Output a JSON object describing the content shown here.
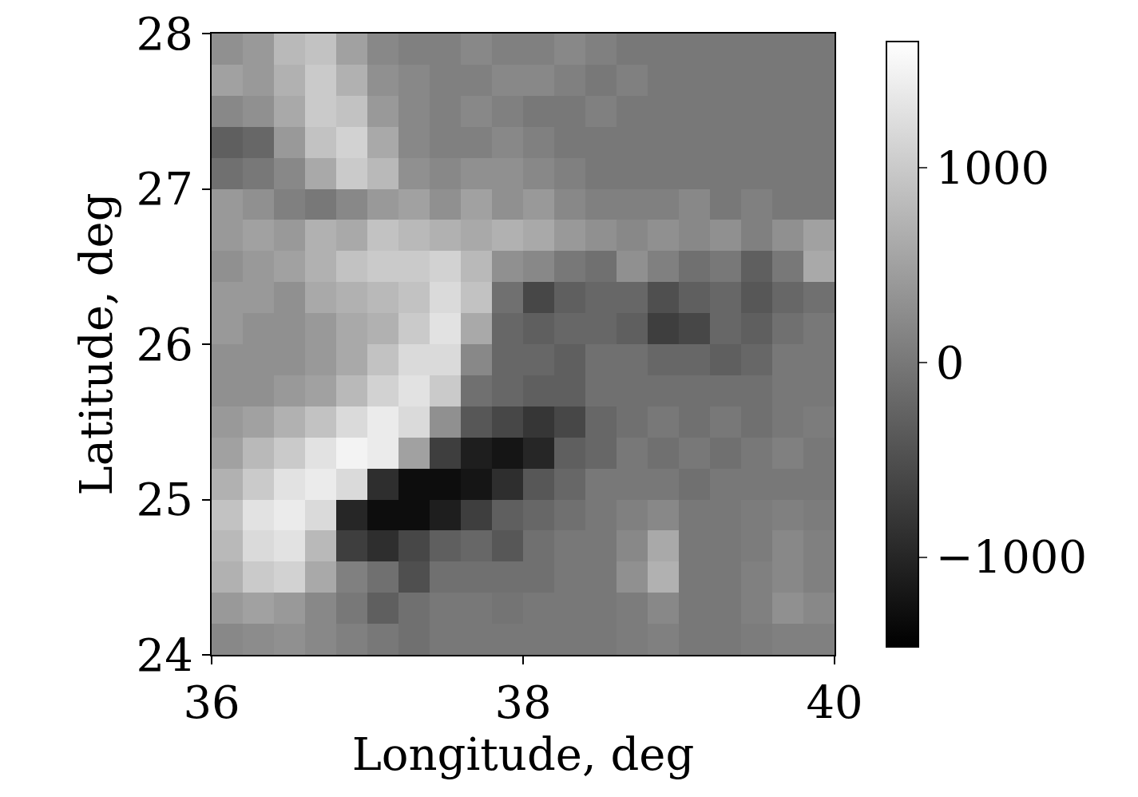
{
  "chart_data": {
    "type": "heatmap",
    "xlabel": "Longitude, deg",
    "ylabel": "Latitude, deg",
    "x": [
      36.1,
      36.3,
      36.5,
      36.7,
      36.9,
      37.1,
      37.3,
      37.5,
      37.7,
      37.9,
      38.1,
      38.3,
      38.5,
      38.7,
      38.9,
      39.1,
      39.3,
      39.5,
      39.7,
      39.9
    ],
    "y": [
      24.1,
      24.3,
      24.5,
      24.7,
      24.9,
      25.1,
      25.3,
      25.5,
      25.7,
      25.9,
      26.1,
      26.3,
      26.5,
      26.7,
      26.9,
      27.1,
      27.3,
      27.5,
      27.7,
      27.9
    ],
    "cells": [
      [
        200,
        250,
        300,
        200,
        100,
        0,
        -100,
        0,
        0,
        0,
        0,
        0,
        0,
        50,
        100,
        0,
        0,
        50,
        100,
        100
      ],
      [
        400,
        500,
        400,
        200,
        0,
        -300,
        -100,
        0,
        0,
        -50,
        0,
        0,
        0,
        50,
        200,
        0,
        0,
        100,
        300,
        200
      ],
      [
        700,
        1000,
        1100,
        600,
        100,
        -100,
        -500,
        -100,
        -100,
        -100,
        -100,
        0,
        0,
        300,
        700,
        0,
        0,
        100,
        200,
        100
      ],
      [
        800,
        1200,
        1300,
        800,
        -700,
        -900,
        -600,
        -300,
        -200,
        -400,
        -100,
        0,
        0,
        200,
        600,
        0,
        0,
        50,
        200,
        100
      ],
      [
        900,
        1300,
        1400,
        1200,
        -1000,
        -1300,
        -1300,
        -1100,
        -700,
        -300,
        -200,
        -100,
        0,
        100,
        200,
        0,
        0,
        50,
        100,
        50
      ],
      [
        700,
        1000,
        1300,
        1400,
        1200,
        -900,
        -1300,
        -1300,
        -1200,
        -900,
        -400,
        -200,
        0,
        0,
        0,
        -100,
        0,
        0,
        0,
        0
      ],
      [
        500,
        800,
        1000,
        1300,
        1500,
        1400,
        500,
        -700,
        -1100,
        -1200,
        -1000,
        -300,
        -200,
        0,
        -100,
        0,
        -100,
        0,
        100,
        0
      ],
      [
        400,
        500,
        700,
        900,
        1200,
        1400,
        1200,
        300,
        -400,
        -600,
        -800,
        -600,
        -200,
        -100,
        0,
        -100,
        0,
        -100,
        0,
        50
      ],
      [
        300,
        300,
        400,
        500,
        800,
        1100,
        1300,
        1000,
        -100,
        -200,
        -300,
        -300,
        -100,
        -100,
        -100,
        -100,
        -100,
        -100,
        0,
        0
      ],
      [
        300,
        300,
        300,
        400,
        600,
        900,
        1200,
        1200,
        200,
        -200,
        -200,
        -300,
        -100,
        -100,
        -200,
        -200,
        -300,
        -200,
        0,
        0
      ],
      [
        400,
        300,
        300,
        400,
        600,
        700,
        1000,
        1300,
        600,
        -200,
        -300,
        -200,
        -200,
        -300,
        -700,
        -600,
        -200,
        -300,
        -100,
        0
      ],
      [
        400,
        400,
        300,
        600,
        700,
        800,
        900,
        1200,
        900,
        -100,
        -600,
        -300,
        -200,
        -200,
        -500,
        -300,
        -200,
        -400,
        -200,
        -100
      ],
      [
        300,
        400,
        500,
        700,
        900,
        1000,
        1000,
        1100,
        800,
        300,
        200,
        0,
        -100,
        300,
        100,
        -100,
        0,
        -300,
        0,
        600
      ],
      [
        400,
        500,
        400,
        700,
        600,
        900,
        800,
        700,
        600,
        700,
        600,
        400,
        300,
        200,
        300,
        200,
        300,
        100,
        300,
        500
      ],
      [
        400,
        300,
        100,
        0,
        200,
        400,
        500,
        300,
        500,
        300,
        400,
        200,
        100,
        100,
        100,
        200,
        0,
        100,
        0,
        0
      ],
      [
        -100,
        0,
        200,
        600,
        1000,
        800,
        300,
        200,
        300,
        300,
        200,
        100,
        0,
        0,
        0,
        0,
        0,
        0,
        0,
        0
      ],
      [
        -300,
        -200,
        400,
        900,
        1100,
        600,
        200,
        100,
        100,
        200,
        100,
        0,
        0,
        0,
        0,
        0,
        0,
        0,
        0,
        0
      ],
      [
        200,
        300,
        600,
        1000,
        900,
        400,
        200,
        100,
        200,
        100,
        0,
        0,
        100,
        0,
        0,
        0,
        0,
        0,
        0,
        0
      ],
      [
        500,
        400,
        700,
        1000,
        700,
        300,
        200,
        100,
        100,
        200,
        200,
        100,
        0,
        100,
        0,
        0,
        0,
        0,
        0,
        0
      ],
      [
        300,
        400,
        800,
        900,
        500,
        200,
        100,
        100,
        200,
        100,
        100,
        200,
        100,
        0,
        0,
        0,
        0,
        0,
        0,
        0
      ]
    ],
    "xlim": [
      36,
      40
    ],
    "xticks": [
      36,
      38,
      40
    ],
    "ylim": [
      24,
      28
    ],
    "yticks": [
      24,
      25,
      26,
      27,
      28
    ],
    "colorbar_range": [
      -1460,
      1650
    ],
    "colorbar_ticks": [
      -1000,
      0,
      1000
    ],
    "colors": [
      "#000000",
      "#ffffff"
    ]
  }
}
